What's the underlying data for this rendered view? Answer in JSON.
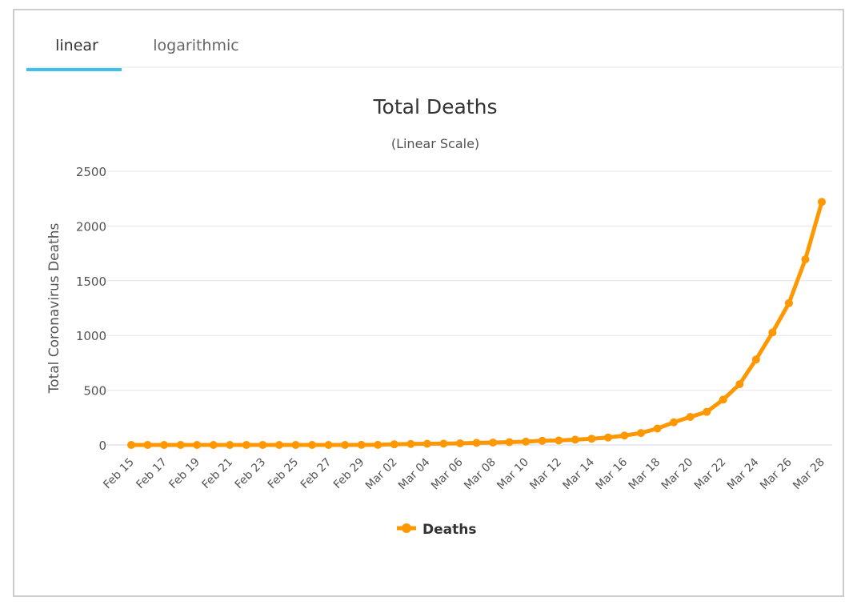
{
  "tabs": [
    "linear",
    "logarithmic"
  ],
  "chart_data": {
    "type": "line",
    "title": "Total Deaths",
    "subtitle": "(Linear Scale)",
    "y_label": "Total Coronavirus Deaths",
    "categories": [
      "Feb 15",
      null,
      "Feb 17",
      null,
      "Feb 19",
      null,
      "Feb 21",
      null,
      "Feb 23",
      null,
      "Feb 25",
      null,
      "Feb 27",
      null,
      "Feb 29",
      null,
      "Mar 02",
      null,
      "Mar 04",
      null,
      "Mar 06",
      null,
      "Mar 08",
      null,
      "Mar 10",
      null,
      "Mar 12",
      null,
      "Mar 14",
      null,
      "Mar 16",
      null,
      "Mar 18",
      null,
      "Mar 20",
      null,
      "Mar 22",
      null,
      "Mar 24",
      null,
      "Mar 26",
      null,
      "Mar 28"
    ],
    "series": [
      {
        "name": "Deaths",
        "color": "#ff9800",
        "values": [
          0,
          0,
          0,
          0,
          0,
          0,
          0,
          0,
          0,
          0,
          0,
          0,
          0,
          0,
          1,
          1,
          6,
          9,
          11,
          12,
          15,
          19,
          22,
          26,
          30,
          38,
          41,
          48,
          57,
          68,
          86,
          109,
          150,
          207,
          256,
          302,
          414,
          555,
          780,
          1027,
          1295,
          1695,
          2220
        ]
      }
    ],
    "ylim": [
      0,
      2500
    ],
    "yticks": [
      0,
      500,
      1000,
      1500,
      2000,
      2500
    ],
    "grid": true,
    "legend": "bottom"
  }
}
